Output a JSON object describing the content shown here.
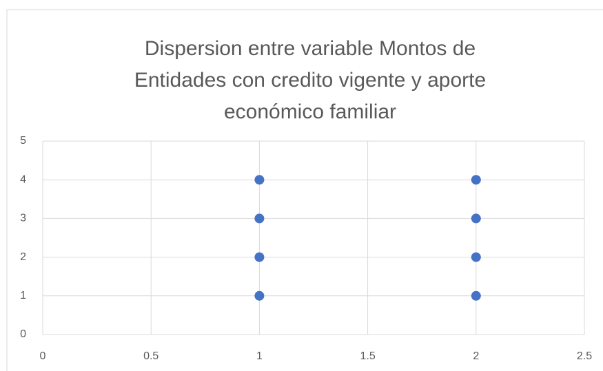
{
  "chart_data": {
    "type": "scatter",
    "title": "Dispersion entre variable Montos de Entidades con credito vigente y aporte económico familiar",
    "series": [
      {
        "color": "#4472c4",
        "x": [
          1,
          1,
          1,
          1,
          2,
          2,
          2,
          2
        ],
        "values": [
          1,
          2,
          3,
          4,
          1,
          2,
          3,
          4
        ]
      }
    ],
    "xlim": [
      0,
      2.5
    ],
    "xticks": [
      0,
      0.5,
      1,
      1.5,
      2,
      2.5
    ],
    "ylim": [
      0,
      5
    ],
    "yticks": [
      0,
      1,
      2,
      3,
      4,
      5
    ],
    "grid": true
  }
}
